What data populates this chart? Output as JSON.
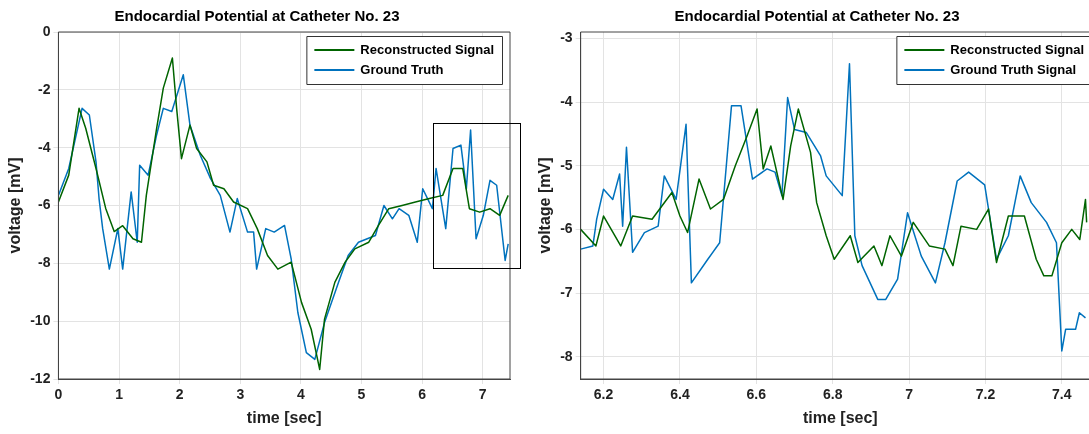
{
  "chart_data": [
    {
      "type": "line",
      "title": "Endocardial Potential at Catheter No. 23",
      "xlabel": "time [sec]",
      "ylabel": "voltage [mV]",
      "xlim": [
        0,
        7.45
      ],
      "ylim": [
        -12,
        0
      ],
      "xticks": [
        0,
        1,
        2,
        3,
        4,
        5,
        6,
        7
      ],
      "yticks": [
        -12,
        -10,
        -8,
        -6,
        -4,
        -2,
        0
      ],
      "grid": true,
      "legend": "top right",
      "marker": "none",
      "line_style": "solid",
      "series": [
        {
          "name": "Reconstructed Signal",
          "color": "#006400",
          "x": [
            0,
            0.17,
            0.34,
            0.45,
            0.62,
            0.78,
            0.92,
            1.06,
            1.23,
            1.37,
            1.45,
            1.62,
            1.73,
            1.88,
            1.95,
            2.03,
            2.17,
            2.28,
            2.45,
            2.56,
            2.73,
            2.89,
            3.12,
            3.28,
            3.45,
            3.62,
            3.84,
            4.01,
            4.17,
            4.31,
            4.39,
            4.56,
            4.73,
            4.89,
            5.12,
            5.28,
            5.45,
            5.67,
            5.89,
            6.12,
            6.34,
            6.51,
            6.67,
            6.78,
            6.95,
            7.12,
            7.28,
            7.42
          ],
          "values": [
            -5.88,
            -4.95,
            -2.64,
            -3.33,
            -4.72,
            -6.1,
            -6.9,
            -6.7,
            -7.15,
            -7.27,
            -5.65,
            -3.33,
            -1.94,
            -0.9,
            -2.64,
            -4.38,
            -3.22,
            -4.03,
            -4.49,
            -5.3,
            -5.42,
            -5.88,
            -6.11,
            -6.8,
            -7.73,
            -8.2,
            -7.96,
            -9.35,
            -10.28,
            -11.67,
            -9.93,
            -8.66,
            -7.96,
            -7.5,
            -7.27,
            -6.69,
            -6.11,
            -6.0,
            -5.88,
            -5.76,
            -5.65,
            -4.72,
            -4.72,
            -6.11,
            -6.23,
            -6.11,
            -6.34,
            -5.65
          ]
        },
        {
          "name": "Ground Truth",
          "color": "#0072bd",
          "x": [
            0,
            0.17,
            0.39,
            0.51,
            0.62,
            0.67,
            0.73,
            0.84,
            0.98,
            1.06,
            1.2,
            1.3,
            1.34,
            1.48,
            1.62,
            1.73,
            1.87,
            2.06,
            2.17,
            2.34,
            2.51,
            2.67,
            2.83,
            2.95,
            3.12,
            3.22,
            3.27,
            3.42,
            3.56,
            3.73,
            3.84,
            3.95,
            4.09,
            4.23,
            4.39,
            4.62,
            4.78,
            4.95,
            5.23,
            5.37,
            5.51,
            5.62,
            5.78,
            5.92,
            6.01,
            6.17,
            6.23,
            6.39,
            6.51,
            6.64,
            6.73,
            6.8,
            6.89,
            7.01,
            7.12,
            7.23,
            7.37,
            7.42
          ],
          "values": [
            -5.65,
            -4.72,
            -2.64,
            -2.87,
            -4.49,
            -5.76,
            -6.8,
            -8.2,
            -6.8,
            -8.2,
            -5.53,
            -7.27,
            -4.61,
            -4.95,
            -3.56,
            -2.64,
            -2.75,
            -1.48,
            -3.22,
            -4.26,
            -5.07,
            -5.65,
            -6.92,
            -5.76,
            -6.92,
            -6.92,
            -8.2,
            -6.8,
            -6.92,
            -6.69,
            -7.85,
            -9.7,
            -11.09,
            -11.32,
            -10.05,
            -8.66,
            -7.73,
            -7.27,
            -7.04,
            -6.0,
            -6.46,
            -6.11,
            -6.34,
            -7.27,
            -5.42,
            -6.11,
            -4.72,
            -6.8,
            -4.03,
            -3.91,
            -5.42,
            -3.39,
            -7.15,
            -6.34,
            -5.13,
            -5.3,
            -7.9,
            -7.33
          ]
        }
      ]
    },
    {
      "type": "line",
      "title": "Endocardial Potential at Catheter No. 23",
      "xlabel": "time [sec]",
      "ylabel": "voltage [mV]",
      "xlim": [
        6.14,
        7.5
      ],
      "ylim": [
        -8.35,
        -2.9
      ],
      "xticks": [
        6.2,
        6.4,
        6.6,
        6.8,
        7,
        7.2,
        7.4
      ],
      "yticks": [
        -8,
        -7,
        -6,
        -5,
        -4,
        -3
      ],
      "grid": true,
      "legend": "top right",
      "marker": "none",
      "line_style": "solid",
      "series": [
        {
          "name": "Reconstructed Signal",
          "color": "#006400",
          "x": [
            6.14,
            6.18,
            6.2,
            6.245,
            6.276,
            6.327,
            6.379,
            6.4,
            6.42,
            6.45,
            6.48,
            6.514,
            6.545,
            6.576,
            6.602,
            6.618,
            6.638,
            6.67,
            6.69,
            6.71,
            6.742,
            6.758,
            6.783,
            6.804,
            6.846,
            6.866,
            6.908,
            6.929,
            6.95,
            6.98,
            7.011,
            7.053,
            7.094,
            7.115,
            7.136,
            7.177,
            7.208,
            7.229,
            7.26,
            7.302,
            7.333,
            7.353,
            7.374,
            7.4,
            7.426,
            7.447,
            7.462,
            7.465
          ],
          "values": [
            -6.0,
            -6.26,
            -5.79,
            -6.26,
            -5.79,
            -5.84,
            -5.42,
            -5.79,
            -6.05,
            -5.21,
            -5.68,
            -5.53,
            -5.0,
            -4.53,
            -4.11,
            -5.05,
            -4.69,
            -5.53,
            -4.69,
            -4.11,
            -4.79,
            -5.58,
            -6.1,
            -6.47,
            -6.1,
            -6.52,
            -6.26,
            -6.57,
            -6.1,
            -6.42,
            -5.89,
            -6.26,
            -6.31,
            -6.57,
            -5.95,
            -6.0,
            -5.68,
            -6.52,
            -5.79,
            -5.79,
            -6.47,
            -6.73,
            -6.73,
            -6.21,
            -6.0,
            -6.16,
            -5.53,
            -5.89
          ]
        },
        {
          "name": "Ground Truth Signal",
          "color": "#0072bd",
          "x": [
            6.14,
            6.172,
            6.182,
            6.2,
            6.224,
            6.242,
            6.25,
            6.26,
            6.276,
            6.307,
            6.343,
            6.359,
            6.39,
            6.416,
            6.43,
            6.473,
            6.504,
            6.535,
            6.56,
            6.59,
            6.628,
            6.649,
            6.667,
            6.682,
            6.7,
            6.731,
            6.768,
            6.783,
            6.825,
            6.844,
            6.858,
            6.877,
            6.918,
            6.939,
            6.97,
            6.996,
            7.032,
            7.069,
            7.094,
            7.126,
            7.156,
            7.198,
            7.229,
            7.26,
            7.291,
            7.32,
            7.36,
            7.386,
            7.4,
            7.41,
            7.436,
            7.446,
            7.462
          ],
          "values": [
            -6.31,
            -6.26,
            -5.84,
            -5.37,
            -5.53,
            -5.13,
            -5.95,
            -4.71,
            -6.36,
            -6.05,
            -5.95,
            -5.16,
            -5.53,
            -4.35,
            -6.84,
            -6.47,
            -6.21,
            -4.06,
            -4.06,
            -5.21,
            -5.05,
            -5.1,
            -5.47,
            -3.93,
            -4.43,
            -4.48,
            -4.84,
            -5.16,
            -5.47,
            -3.4,
            -6.1,
            -6.57,
            -7.1,
            -7.1,
            -6.78,
            -5.74,
            -6.42,
            -6.84,
            -6.21,
            -5.24,
            -5.1,
            -5.3,
            -6.47,
            -6.1,
            -5.16,
            -5.58,
            -5.89,
            -6.21,
            -7.91,
            -7.57,
            -7.57,
            -7.31,
            -7.39
          ]
        }
      ]
    }
  ]
}
